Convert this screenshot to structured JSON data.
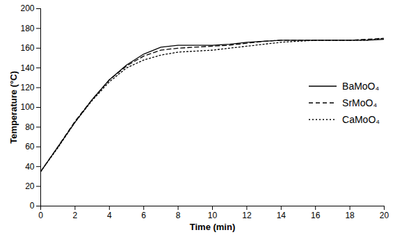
{
  "chart_data": {
    "type": "line",
    "x_label": "Time (min)",
    "y_label": "Temperature (°C)",
    "x": [
      0,
      1,
      2,
      3,
      4,
      5,
      6,
      7,
      8,
      9,
      10,
      11,
      12,
      13,
      14,
      15,
      16,
      17,
      18,
      19,
      20
    ],
    "series": [
      {
        "name": "BaMoO₄",
        "color": "#000000",
        "line_style": "solid",
        "values": [
          35,
          60,
          85,
          108,
          128,
          143,
          154,
          161,
          163,
          163,
          163,
          164,
          166,
          167,
          168,
          168,
          168,
          168,
          168,
          168,
          169
        ]
      },
      {
        "name": "SrMoO₄",
        "color": "#000000",
        "line_style": "dashed",
        "values": [
          35,
          60,
          86,
          108,
          128,
          142,
          152,
          158,
          160,
          161,
          162,
          163,
          165,
          167,
          168,
          168,
          168,
          168,
          168,
          169,
          170
        ]
      },
      {
        "name": "CaMoO₄",
        "color": "#000000",
        "line_style": "dotted",
        "values": [
          35,
          59,
          85,
          107,
          126,
          140,
          148,
          153,
          156,
          157,
          158,
          160,
          162,
          164,
          166,
          167,
          168,
          168,
          168,
          168,
          170
        ]
      }
    ],
    "xlim": [
      0,
      20
    ],
    "ylim": [
      0,
      200
    ],
    "xticks": [
      0,
      2,
      4,
      6,
      8,
      10,
      12,
      14,
      16,
      18,
      20
    ],
    "yticks": [
      0,
      20,
      40,
      60,
      80,
      100,
      120,
      140,
      160,
      180,
      200
    ],
    "grid": false,
    "legend": "right"
  }
}
